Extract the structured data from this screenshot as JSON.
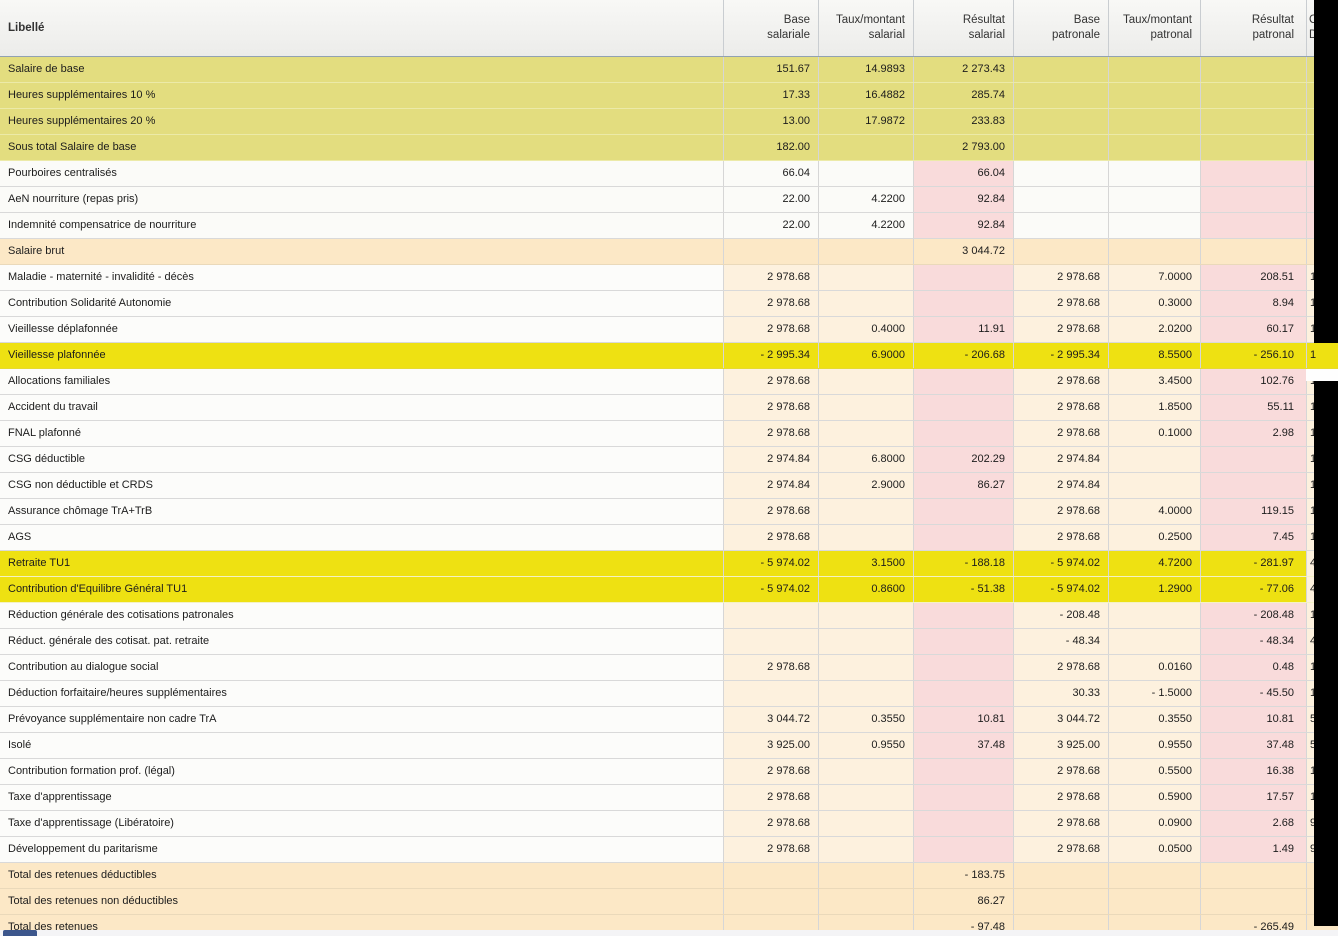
{
  "table": {
    "columns": [
      {
        "id": "label",
        "header": "Libellé"
      },
      {
        "id": "base_sal",
        "header_l1": "Base",
        "header_l2": "salariale"
      },
      {
        "id": "taux_sal",
        "header_l1": "Taux/montant",
        "header_l2": "salarial"
      },
      {
        "id": "res_sal",
        "header_l1": "Résultat",
        "header_l2": "salarial"
      },
      {
        "id": "base_pat",
        "header_l1": "Base",
        "header_l2": "patronale"
      },
      {
        "id": "taux_pat",
        "header_l1": "Taux/montant",
        "header_l2": "patronal"
      },
      {
        "id": "res_pat",
        "header_l1": "Résultat",
        "header_l2": "patronal"
      },
      {
        "id": "extra",
        "header_l1": "C",
        "header_l2": "D"
      }
    ],
    "rows": [
      {
        "label": "Salaire de base",
        "style": "khaki",
        "selected": true,
        "base_sal": "151.67",
        "taux_sal": "14.9893",
        "res_sal": "2 273.43",
        "base_pat": "",
        "taux_pat": "",
        "res_pat": "",
        "extra": ""
      },
      {
        "label": "Heures supplémentaires 10 %",
        "style": "khaki",
        "base_sal": "17.33",
        "taux_sal": "16.4882",
        "res_sal": "285.74",
        "base_pat": "",
        "taux_pat": "",
        "res_pat": "",
        "extra": ""
      },
      {
        "label": "Heures supplémentaires 20 %",
        "style": "khaki",
        "base_sal": "13.00",
        "taux_sal": "17.9872",
        "res_sal": "233.83",
        "base_pat": "",
        "taux_pat": "",
        "res_pat": "",
        "extra": ""
      },
      {
        "label": "Sous total Salaire de base",
        "style": "khaki",
        "base_sal": "182.00",
        "taux_sal": "",
        "res_sal": "2 793.00",
        "base_pat": "",
        "taux_pat": "",
        "res_pat": "",
        "extra": ""
      },
      {
        "label": "Pourboires centralisés",
        "style": "plain",
        "base_sal": "66.04",
        "taux_sal": "",
        "res_sal": "66.04",
        "base_pat": "",
        "taux_pat": "",
        "res_pat": "",
        "extra": ""
      },
      {
        "label": "AeN nourriture (repas pris)",
        "style": "plain",
        "base_sal": "22.00",
        "taux_sal": "4.2200",
        "res_sal": "92.84",
        "base_pat": "",
        "taux_pat": "",
        "res_pat": "",
        "extra": ""
      },
      {
        "label": "Indemnité compensatrice de nourriture",
        "style": "plain",
        "base_sal": "22.00",
        "taux_sal": "4.2200",
        "res_sal": "92.84",
        "base_pat": "",
        "taux_pat": "",
        "res_pat": "",
        "extra": ""
      },
      {
        "label": "Salaire brut",
        "style": "peach",
        "base_sal": "",
        "taux_sal": "",
        "res_sal": "3 044.72",
        "base_pat": "",
        "taux_pat": "",
        "res_pat": "",
        "extra": ""
      },
      {
        "label": "Maladie - maternité - invalidité - décès",
        "style": "cotis",
        "base_sal": "2 978.68",
        "taux_sal": "",
        "res_sal": "",
        "base_pat": "2 978.68",
        "taux_pat": "7.0000",
        "res_pat": "208.51",
        "extra": "1"
      },
      {
        "label": "Contribution Solidarité Autonomie",
        "style": "cotis",
        "base_sal": "2 978.68",
        "taux_sal": "",
        "res_sal": "",
        "base_pat": "2 978.68",
        "taux_pat": "0.3000",
        "res_pat": "8.94",
        "extra": "1"
      },
      {
        "label": "Vieillesse déplafonnée",
        "style": "cotis",
        "base_sal": "2 978.68",
        "taux_sal": "0.4000",
        "res_sal": "11.91",
        "base_pat": "2 978.68",
        "taux_pat": "2.0200",
        "res_pat": "60.17",
        "extra": "1"
      },
      {
        "label": "Vieillesse plafonnée",
        "style": "hlfull",
        "base_sal": "- 2 995.34",
        "taux_sal": "6.9000",
        "res_sal": "- 206.68",
        "base_pat": "- 2 995.34",
        "taux_pat": "8.5500",
        "res_pat": "- 256.10",
        "extra": "1"
      },
      {
        "label": "Allocations familiales",
        "style": "cotis",
        "base_sal": "2 978.68",
        "taux_sal": "",
        "res_sal": "",
        "base_pat": "2 978.68",
        "taux_pat": "3.4500",
        "res_pat": "102.76",
        "extra": "1"
      },
      {
        "label": "Accident du travail",
        "style": "cotis",
        "base_sal": "2 978.68",
        "taux_sal": "",
        "res_sal": "",
        "base_pat": "2 978.68",
        "taux_pat": "1.8500",
        "res_pat": "55.11",
        "extra": "1"
      },
      {
        "label": "FNAL plafonné",
        "style": "cotis",
        "base_sal": "2 978.68",
        "taux_sal": "",
        "res_sal": "",
        "base_pat": "2 978.68",
        "taux_pat": "0.1000",
        "res_pat": "2.98",
        "extra": "1"
      },
      {
        "label": "CSG déductible",
        "style": "cotis",
        "base_sal": "2 974.84",
        "taux_sal": "6.8000",
        "res_sal": "202.29",
        "base_pat": "2 974.84",
        "taux_pat": "",
        "res_pat": "",
        "extra": "1"
      },
      {
        "label": "CSG non déductible et CRDS",
        "style": "cotis",
        "base_sal": "2 974.84",
        "taux_sal": "2.9000",
        "res_sal": "86.27",
        "base_pat": "2 974.84",
        "taux_pat": "",
        "res_pat": "",
        "extra": "1"
      },
      {
        "label": "Assurance chômage TrA+TrB",
        "style": "cotis",
        "base_sal": "2 978.68",
        "taux_sal": "",
        "res_sal": "",
        "base_pat": "2 978.68",
        "taux_pat": "4.0000",
        "res_pat": "119.15",
        "extra": "1"
      },
      {
        "label": "AGS",
        "style": "cotis",
        "base_sal": "2 978.68",
        "taux_sal": "",
        "res_sal": "",
        "base_pat": "2 978.68",
        "taux_pat": "0.2500",
        "res_pat": "7.45",
        "extra": "1"
      },
      {
        "label": "Retraite TU1",
        "style": "hl",
        "base_sal": "- 5 974.02",
        "taux_sal": "3.1500",
        "res_sal": "- 188.18",
        "base_pat": "- 5 974.02",
        "taux_pat": "4.7200",
        "res_pat": "- 281.97",
        "extra": "4"
      },
      {
        "label": "Contribution d'Equilibre Général TU1",
        "style": "hl",
        "base_sal": "- 5 974.02",
        "taux_sal": "0.8600",
        "res_sal": "- 51.38",
        "base_pat": "- 5 974.02",
        "taux_pat": "1.2900",
        "res_pat": "- 77.06",
        "extra": "4"
      },
      {
        "label": "Réduction générale des cotisations patronales",
        "style": "cotis",
        "base_sal": "",
        "taux_sal": "",
        "res_sal": "",
        "base_pat": "- 208.48",
        "taux_pat": "",
        "res_pat": "- 208.48",
        "extra": "1"
      },
      {
        "label": "Réduct. générale des cotisat. pat. retraite",
        "style": "cotis",
        "base_sal": "",
        "taux_sal": "",
        "res_sal": "",
        "base_pat": "- 48.34",
        "taux_pat": "",
        "res_pat": "- 48.34",
        "extra": "4"
      },
      {
        "label": "Contribution au dialogue social",
        "style": "cotis",
        "base_sal": "2 978.68",
        "taux_sal": "",
        "res_sal": "",
        "base_pat": "2 978.68",
        "taux_pat": "0.0160",
        "res_pat": "0.48",
        "extra": "1"
      },
      {
        "label": "Déduction forfaitaire/heures supplémentaires",
        "style": "cotis",
        "base_sal": "",
        "taux_sal": "",
        "res_sal": "",
        "base_pat": "30.33",
        "taux_pat": "- 1.5000",
        "res_pat": "- 45.50",
        "extra": "1"
      },
      {
        "label": "Prévoyance supplémentaire non cadre TrA",
        "style": "cotis",
        "base_sal": "3 044.72",
        "taux_sal": "0.3550",
        "res_sal": "10.81",
        "base_pat": "3 044.72",
        "taux_pat": "0.3550",
        "res_pat": "10.81",
        "extra": "5"
      },
      {
        "label": "Isolé",
        "style": "cotis",
        "base_sal": "3 925.00",
        "taux_sal": "0.9550",
        "res_sal": "37.48",
        "base_pat": "3 925.00",
        "taux_pat": "0.9550",
        "res_pat": "37.48",
        "extra": "5"
      },
      {
        "label": "Contribution formation prof. (légal)",
        "style": "cotis",
        "base_sal": "2 978.68",
        "taux_sal": "",
        "res_sal": "",
        "base_pat": "2 978.68",
        "taux_pat": "0.5500",
        "res_pat": "16.38",
        "extra": "1"
      },
      {
        "label": "Taxe d'apprentissage",
        "style": "cotis",
        "base_sal": "2 978.68",
        "taux_sal": "",
        "res_sal": "",
        "base_pat": "2 978.68",
        "taux_pat": "0.5900",
        "res_pat": "17.57",
        "extra": "1"
      },
      {
        "label": "Taxe d'apprentissage (Libératoire)",
        "style": "cotis",
        "base_sal": "2 978.68",
        "taux_sal": "",
        "res_sal": "",
        "base_pat": "2 978.68",
        "taux_pat": "0.0900",
        "res_pat": "2.68",
        "extra": "9"
      },
      {
        "label": "Développement du paritarisme",
        "style": "cotis",
        "base_sal": "2 978.68",
        "taux_sal": "",
        "res_sal": "",
        "base_pat": "2 978.68",
        "taux_pat": "0.0500",
        "res_pat": "1.49",
        "extra": "9"
      },
      {
        "label": "Total des retenues déductibles",
        "style": "peach",
        "base_sal": "",
        "taux_sal": "",
        "res_sal": "- 183.75",
        "base_pat": "",
        "taux_pat": "",
        "res_pat": "",
        "extra": ""
      },
      {
        "label": "Total des retenues non déductibles",
        "style": "peach",
        "base_sal": "",
        "taux_sal": "",
        "res_sal": "86.27",
        "base_pat": "",
        "taux_pat": "",
        "res_pat": "",
        "extra": ""
      },
      {
        "label": "Total des retenues",
        "style": "peach",
        "clipped": true,
        "base_sal": "",
        "taux_sal": "",
        "res_sal": "- 97.48",
        "base_pat": "",
        "taux_pat": "",
        "res_pat": "- 265.49",
        "extra": ""
      }
    ]
  },
  "colors": {
    "row_khaki": "#e3dd7f",
    "row_highlight_yellow": "#eee112",
    "cell_result_pink": "#f9dbdb",
    "cell_base_cream": "#fdf1de",
    "row_total_peach": "#fce8c6",
    "selected_border": "#5d7284",
    "clipped_region": "#000000",
    "taskbar_peek_blue": "#3c568c"
  }
}
